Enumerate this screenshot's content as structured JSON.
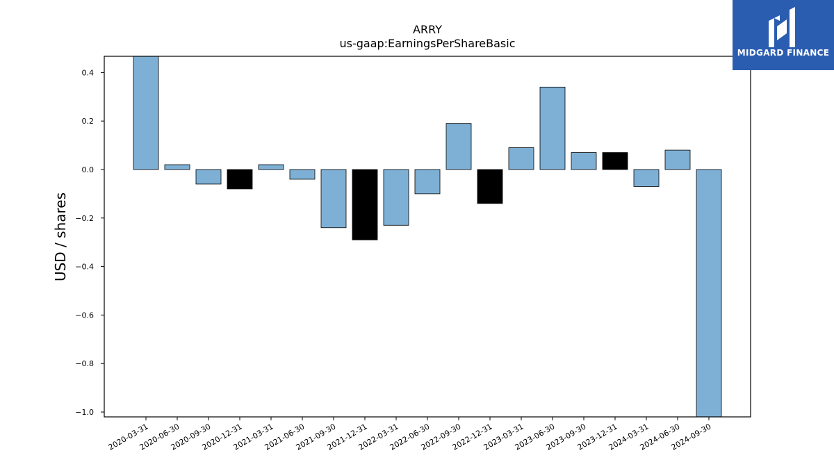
{
  "chart_data": {
    "type": "bar",
    "title": "ARRY",
    "subtitle": "us-gaap:EarningsPerShareBasic",
    "ylabel": "USD / shares",
    "ylim": [
      -1.02,
      0.467
    ],
    "yticks": [
      0.4,
      0.2,
      0.0,
      -0.2,
      -0.4,
      -0.6,
      -0.8,
      -1.0
    ],
    "ytick_labels": [
      "0.4",
      "0.2",
      "0.0",
      "−0.2",
      "−0.4",
      "−0.6",
      "−0.8",
      "−1.0"
    ],
    "categories": [
      "2020-03-31",
      "2020-06-30",
      "2020-09-30",
      "2020-12-31",
      "2021-03-31",
      "2021-06-30",
      "2021-09-30",
      "2021-12-31",
      "2022-03-31",
      "2022-06-30",
      "2022-09-30",
      "2022-12-31",
      "2023-03-31",
      "2023-06-30",
      "2023-09-30",
      "2023-12-31",
      "2024-03-31",
      "2024-06-30",
      "2024-09-30"
    ],
    "values": [
      0.48,
      0.02,
      -0.06,
      -0.08,
      0.02,
      -0.04,
      -0.24,
      -0.29,
      -0.23,
      -0.1,
      0.19,
      -0.14,
      0.09,
      0.34,
      0.07,
      0.07,
      -0.07,
      0.08,
      -1.1
    ],
    "bar_colors": [
      "#7eb0d5",
      "#7eb0d5",
      "#7eb0d5",
      "#000000",
      "#7eb0d5",
      "#7eb0d5",
      "#7eb0d5",
      "#000000",
      "#7eb0d5",
      "#7eb0d5",
      "#7eb0d5",
      "#000000",
      "#7eb0d5",
      "#7eb0d5",
      "#7eb0d5",
      "#000000",
      "#7eb0d5",
      "#7eb0d5",
      "#7eb0d5"
    ],
    "grid": false
  },
  "logo": {
    "text": "MIDGARD FINANCE",
    "color": "#2a5db0"
  }
}
